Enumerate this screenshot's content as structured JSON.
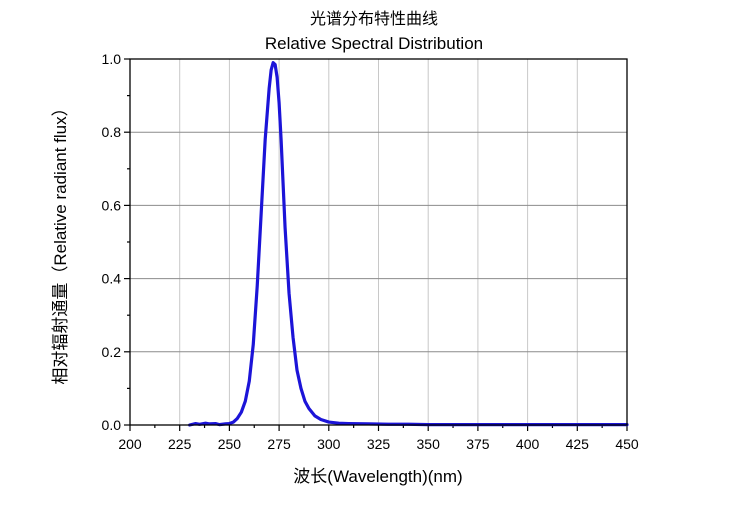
{
  "chart_data": {
    "type": "line",
    "title": "光谱分布特性曲线",
    "subtitle": "Relative Spectral Distribution",
    "xlabel": "波长(Wavelength)(nm)",
    "ylabel": "相对辐射通量（Relative radiant flux）",
    "xlim": [
      200,
      450
    ],
    "ylim": [
      0,
      1.0
    ],
    "xticks": [
      200,
      225,
      250,
      275,
      300,
      325,
      350,
      375,
      400,
      425,
      450
    ],
    "yticks": [
      0.0,
      0.2,
      0.4,
      0.6,
      0.8,
      1.0
    ],
    "xtick_labels": [
      "200",
      "225",
      "250",
      "275",
      "300",
      "325",
      "350",
      "375",
      "400",
      "425",
      "450"
    ],
    "ytick_labels": [
      "0.0",
      "0.2",
      "0.4",
      "0.6",
      "0.8",
      "1.0"
    ],
    "grid": true,
    "series": [
      {
        "name": "Relative Spectral Distribution",
        "color": "#1c14d8",
        "x": [
          230,
          233,
          235,
          238,
          240,
          243,
          245,
          248,
          250,
          252,
          254,
          256,
          258,
          260,
          262,
          264,
          266,
          268,
          270,
          271,
          272,
          273,
          274,
          275,
          276,
          277,
          278,
          280,
          282,
          284,
          286,
          288,
          290,
          293,
          296,
          300,
          305,
          310,
          320,
          330,
          340,
          350,
          375,
          400,
          425,
          450
        ],
        "y": [
          0.0,
          0.004,
          0.002,
          0.005,
          0.003,
          0.004,
          0.001,
          0.003,
          0.004,
          0.008,
          0.018,
          0.035,
          0.065,
          0.12,
          0.22,
          0.38,
          0.58,
          0.78,
          0.92,
          0.97,
          0.99,
          0.985,
          0.95,
          0.88,
          0.78,
          0.66,
          0.54,
          0.36,
          0.24,
          0.15,
          0.1,
          0.065,
          0.045,
          0.025,
          0.015,
          0.008,
          0.005,
          0.004,
          0.003,
          0.002,
          0.002,
          0.001,
          0.001,
          0.001,
          0.001,
          0.001
        ]
      }
    ]
  }
}
